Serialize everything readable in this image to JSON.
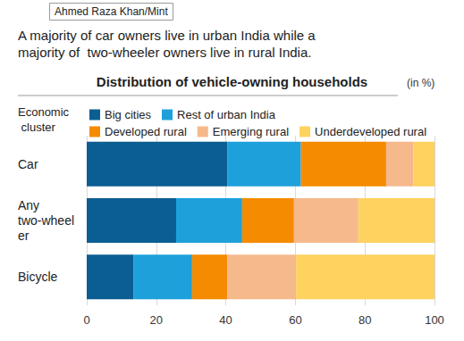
{
  "chart_data": {
    "type": "bar",
    "credit": "Ahmed Raza Khan/Mint",
    "subtitle": "A majority of car owners live in urban India while a majority of  two-wheeler owners live in rural India.",
    "title": "Distribution of vehicle-owning households",
    "unit": "(in %)",
    "legend_title": "Economic cluster",
    "categories": [
      "Car",
      "Any two-wheeler",
      "Bicycle"
    ],
    "series": [
      {
        "name": "Big cities",
        "color": "#0b5e91",
        "values": [
          40.4,
          25.7,
          13.4
        ]
      },
      {
        "name": "Rest of urban India",
        "color": "#1ea0db",
        "values": [
          21.2,
          19.0,
          16.9
        ]
      },
      {
        "name": "Developed rural",
        "color": "#f58b00",
        "values": [
          24.5,
          14.9,
          10.1
        ]
      },
      {
        "name": "Emerging rural",
        "color": "#f6b98c",
        "values": [
          7.8,
          18.5,
          19.8
        ]
      },
      {
        "name": "Underdeveloped rural",
        "color": "#fdd25e",
        "values": [
          6.1,
          21.9,
          39.8
        ]
      }
    ],
    "xlim": [
      0,
      100
    ],
    "xticks": [
      0,
      20,
      40,
      60,
      80,
      100
    ],
    "orientation": "horizontal",
    "stacked": true,
    "grid": true,
    "legend": "top"
  }
}
